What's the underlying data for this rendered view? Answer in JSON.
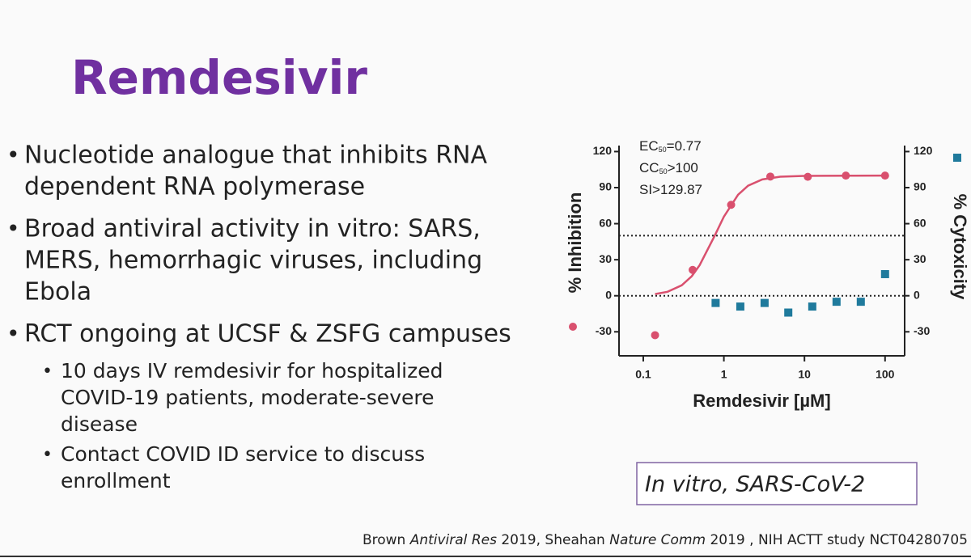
{
  "title": "Remdesivir",
  "bullets": [
    {
      "lines": [
        "Nucleotide analogue that inhibits RNA",
        "dependent RNA polymerase"
      ]
    },
    {
      "lines": [
        "Broad antiviral activity in vitro: SARS,",
        "MERS, hemorrhagic viruses, including",
        "Ebola"
      ]
    },
    {
      "lines": [
        "RCT ongoing at UCSF & ZSFG campuses"
      ],
      "sub": [
        {
          "lines": [
            "10 days IV remdesivir for hospitalized",
            "COVID-19 patients, moderate-severe",
            "disease"
          ]
        },
        {
          "lines": [
            "Contact COVID ID service to discuss",
            "enrollment"
          ]
        }
      ]
    }
  ],
  "chart_data": {
    "type": "scatter",
    "xlabel": "Remdesivir [µM]",
    "ylabel": "% Inhibition",
    "y2label": "% Cytoxicity",
    "xscale": "log",
    "xlim": [
      0.05,
      175
    ],
    "xticks": [
      0.1,
      1,
      10,
      100
    ],
    "ylim": [
      -50,
      125
    ],
    "yticks": [
      -30,
      0,
      30,
      60,
      90,
      120
    ],
    "y2lim": [
      -50,
      125
    ],
    "y2ticks": [
      -30,
      0,
      30,
      60,
      90,
      120
    ],
    "hlines": [
      50,
      0
    ],
    "annotations": [
      {
        "main": "EC",
        "sub": "50",
        "rest": "=0.77"
      },
      {
        "main": "CC",
        "sub": "50",
        "rest": ">100"
      },
      {
        "main": "SI>129.87"
      }
    ],
    "series": [
      {
        "color": "#d9506e",
        "marker": "circle",
        "x": [
          0.14,
          0.41,
          1.23,
          3.77,
          11,
          32.6,
          100
        ],
        "values": [
          -32.8,
          21.5,
          75.7,
          99.2,
          99,
          100,
          100
        ]
      },
      {
        "color": "#d9506e",
        "marker": "line",
        "x": [
          0.14,
          0.2,
          0.3,
          0.4,
          0.5,
          0.77,
          1,
          1.5,
          2,
          3,
          5,
          10,
          100
        ],
        "values": [
          1.4,
          3.3,
          8.7,
          16.3,
          25.4,
          50,
          65.8,
          84.1,
          91.6,
          96.8,
          99.1,
          99.8,
          100
        ]
      },
      {
        "color": "#1f7a9c",
        "marker": "square",
        "axis": "y2",
        "x": [
          0.79,
          1.6,
          3.2,
          6.3,
          12.5,
          25,
          50,
          100
        ],
        "values": [
          -6,
          -9,
          -6,
          -14,
          -9,
          -5,
          -5,
          18
        ]
      }
    ]
  },
  "caption": "In vitro, SARS-CoV-2",
  "citation": [
    {
      "text": "Brown ",
      "italic": false
    },
    {
      "text": "Antiviral Res",
      "italic": true
    },
    {
      "text": " 2019, Sheahan ",
      "italic": false
    },
    {
      "text": "Nature Comm",
      "italic": true
    },
    {
      "text": " 2019 , NIH ACTT study NCT04280705",
      "italic": false
    }
  ]
}
